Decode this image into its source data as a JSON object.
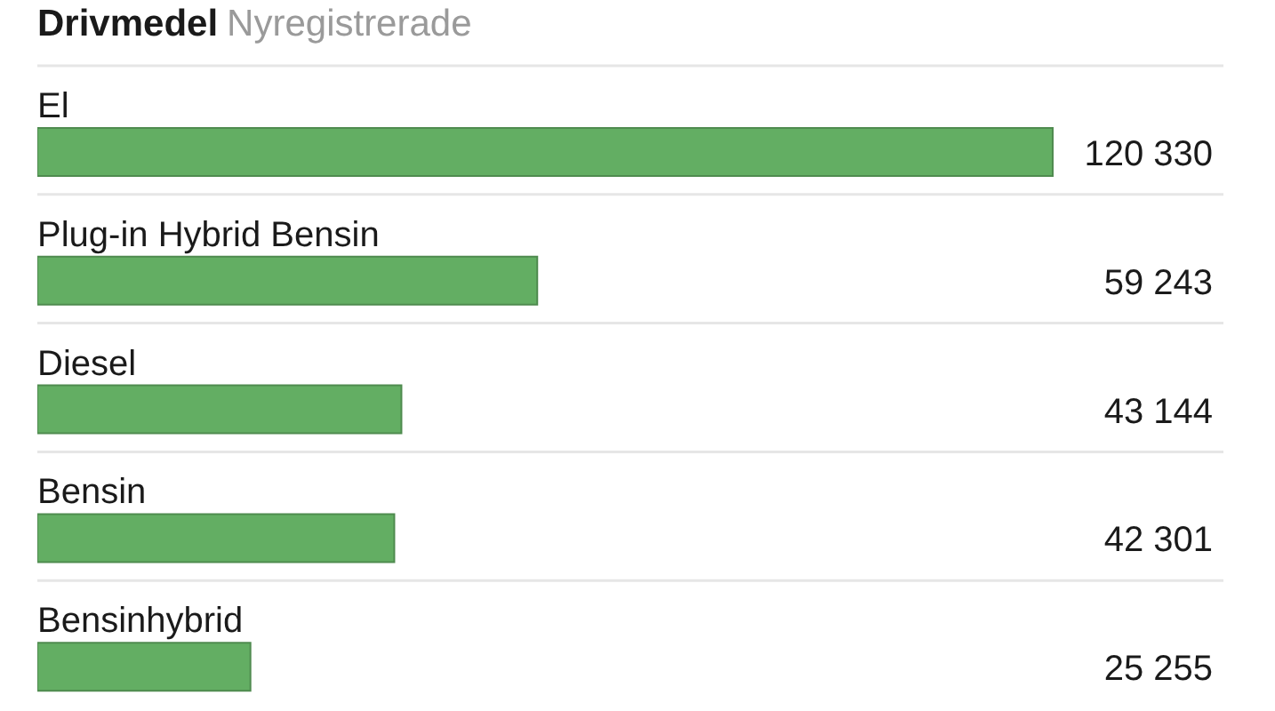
{
  "chart_data": {
    "type": "bar",
    "orientation": "horizontal",
    "title": "Drivmedel",
    "subtitle": "Nyregistrerade",
    "categories": [
      "El",
      "Plug-in Hybrid Bensin",
      "Diesel",
      "Bensin",
      "Bensinhybrid"
    ],
    "values": [
      120330,
      59243,
      43144,
      42301,
      25255
    ],
    "color": "#63ae63",
    "value_labels": [
      "120 330",
      "59 243",
      "43 144",
      "42 301",
      "25 255"
    ],
    "grid": "y",
    "tick_labels": "y"
  }
}
